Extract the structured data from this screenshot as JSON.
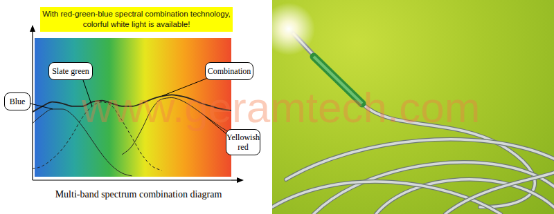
{
  "chart_data": {
    "type": "line",
    "title": "With red-green-blue spectral combination technology, colorful white light is available!",
    "xlabel": "Multi-band spectrum combination diagram",
    "watermark": "www.geramtech.com",
    "x": [
      0,
      5,
      10,
      15,
      20,
      25,
      30,
      35,
      40,
      45,
      50,
      55,
      60,
      65,
      70,
      75,
      80,
      85,
      90,
      95,
      100
    ],
    "xlim": [
      0,
      100
    ],
    "ylim": [
      0,
      100
    ],
    "xticks": [],
    "yticks": [],
    "tick_labels": false,
    "grid": false,
    "series": [
      {
        "name": "Blue",
        "color": "#222222",
        "line_style": "solid",
        "values": [
          40,
          46,
          50,
          50,
          46,
          38,
          28,
          18,
          10,
          5,
          3,
          null,
          null,
          null,
          null,
          null,
          null,
          null,
          null,
          null,
          null
        ]
      },
      {
        "name": "Slate green",
        "color": "#222222",
        "line_style": "dashed",
        "values": [
          8,
          10,
          15,
          22,
          32,
          44,
          52,
          55,
          52,
          42,
          30,
          18,
          10,
          7,
          null,
          null,
          null,
          null,
          null,
          null,
          null
        ]
      },
      {
        "name": "Combination",
        "color": "#222222",
        "line_style": "solid",
        "values": [
          48,
          52,
          55,
          54,
          52,
          52,
          55,
          56,
          54,
          52,
          52,
          54,
          57,
          59,
          60,
          59,
          57,
          54,
          52,
          50,
          49
        ]
      },
      {
        "name": "Yellowish red",
        "color": "#222222",
        "line_style": "solid",
        "values": [
          null,
          null,
          null,
          null,
          null,
          null,
          null,
          null,
          null,
          18,
          24,
          36,
          50,
          57,
          58,
          56,
          52,
          47,
          42,
          37,
          33
        ]
      }
    ]
  }
}
